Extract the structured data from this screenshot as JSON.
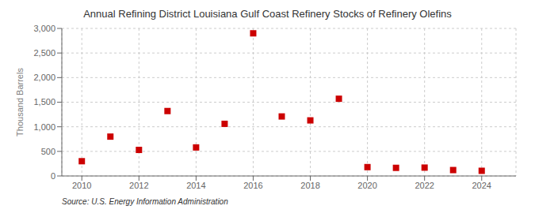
{
  "chart_data": {
    "type": "scatter",
    "title": "Annual Refining District Louisiana Gulf Coast Refinery Stocks of Refinery Olefins",
    "ylabel": "Thousand Barrels",
    "source": "Source: U.S. Energy Information Administration",
    "x": [
      2010,
      2011,
      2012,
      2013,
      2014,
      2015,
      2016,
      2017,
      2018,
      2019,
      2020,
      2021,
      2022,
      2023,
      2024
    ],
    "values": [
      300,
      800,
      530,
      1320,
      580,
      1060,
      2900,
      1210,
      1130,
      1570,
      180,
      165,
      170,
      120,
      105
    ],
    "color": "#cc0000",
    "marker": "square",
    "xlim": [
      2009.3,
      2025.2
    ],
    "ylim": [
      0,
      3000
    ],
    "xticks": [
      2010,
      2012,
      2014,
      2016,
      2018,
      2020,
      2022,
      2024
    ],
    "yticks": [
      0,
      500,
      {
        "value": 1000,
        "label": "1,000"
      },
      {
        "value": 1500,
        "label": "1,500"
      },
      {
        "value": 2000,
        "label": "2,000"
      },
      {
        "value": 2500,
        "label": "2,500"
      },
      {
        "value": 3000,
        "label": "3,000"
      }
    ],
    "grid": true
  }
}
